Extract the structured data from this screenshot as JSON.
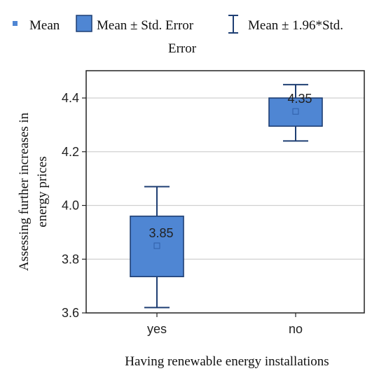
{
  "chart_data": {
    "type": "box",
    "categories": [
      "yes",
      "no"
    ],
    "series": [
      {
        "values": [
          3.85,
          4.35
        ],
        "mean": [
          3.85,
          4.35
        ],
        "se_low": [
          3.735,
          4.295
        ],
        "se_high": [
          3.96,
          4.4
        ],
        "ci_low": [
          3.62,
          4.24
        ],
        "ci_high": [
          4.07,
          4.45
        ]
      }
    ],
    "data_labels": [
      "3.85",
      "4.35"
    ],
    "xlabel": "Having renewable energy installations",
    "ylabel_lines": [
      "Assessing further increases in",
      "energy prices"
    ],
    "ylim": [
      3.6,
      4.5
    ],
    "yticks": [
      3.6,
      3.8,
      4.0,
      4.2,
      4.4
    ],
    "ytick_labels": [
      "3.6",
      "3.8",
      "4.0",
      "4.2",
      "4.4"
    ],
    "grid": true,
    "legend": {
      "position": "top",
      "items": [
        {
          "marker": "square",
          "label": "Mean"
        },
        {
          "marker": "box",
          "label": "Mean ± Std. Error"
        },
        {
          "marker": "whisker",
          "label_lines": [
            "Mean ± 1.96*Std.",
            "Error"
          ]
        }
      ]
    },
    "colors": {
      "box_fill": "#4f86d3",
      "box_stroke": "#1f3f73",
      "whisker": "#1f3f73",
      "grid": "#d0d0d0"
    }
  }
}
